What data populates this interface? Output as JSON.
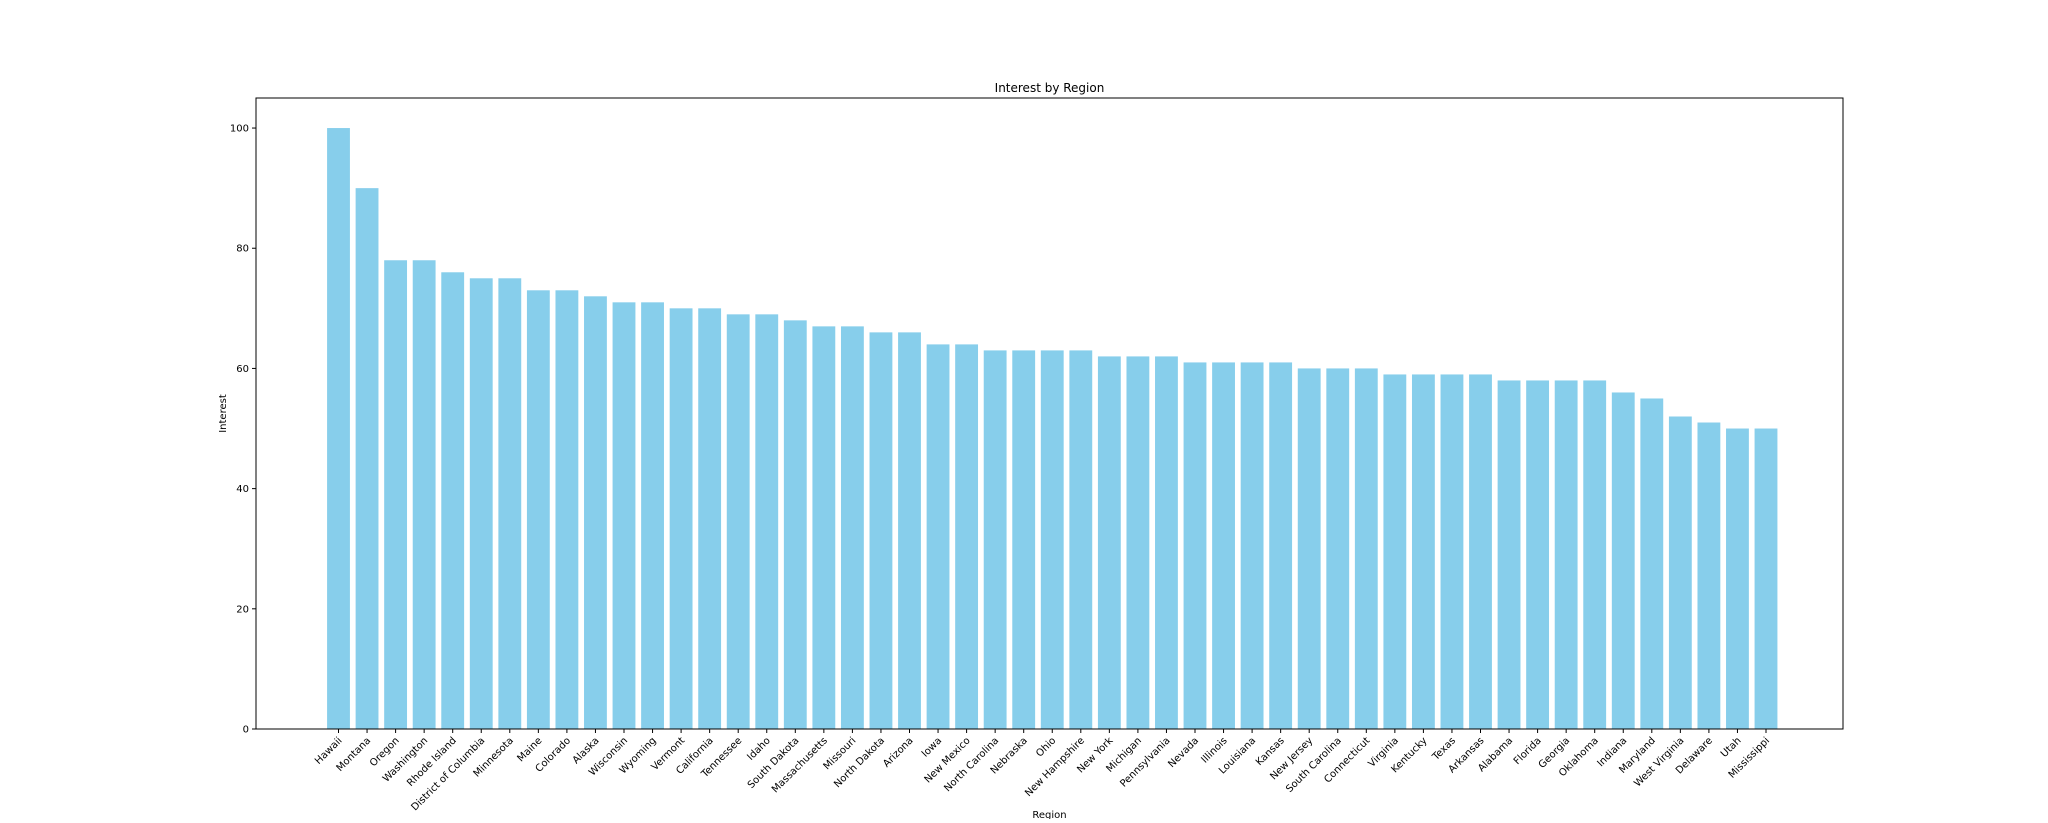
{
  "chart_data": {
    "type": "bar",
    "title": "Interest by Region",
    "xlabel": "Region",
    "ylabel": "Interest",
    "ylim": [
      0,
      105
    ],
    "yticks": [
      0,
      20,
      40,
      60,
      80,
      100
    ],
    "grid": false,
    "bar_color": "#87CEEB",
    "categories": [
      "Hawaii",
      "Montana",
      "Oregon",
      "Washington",
      "Rhode Island",
      "District of Columbia",
      "Minnesota",
      "Maine",
      "Colorado",
      "Alaska",
      "Wisconsin",
      "Wyoming",
      "Vermont",
      "California",
      "Tennessee",
      "Idaho",
      "South Dakota",
      "Massachusetts",
      "Missouri",
      "North Dakota",
      "Arizona",
      "Iowa",
      "New Mexico",
      "North Carolina",
      "Nebraska",
      "Ohio",
      "New Hampshire",
      "New York",
      "Michigan",
      "Pennsylvania",
      "Nevada",
      "Illinois",
      "Louisiana",
      "Kansas",
      "New Jersey",
      "South Carolina",
      "Connecticut",
      "Virginia",
      "Kentucky",
      "Texas",
      "Arkansas",
      "Alabama",
      "Florida",
      "Georgia",
      "Oklahoma",
      "Indiana",
      "Maryland",
      "West Virginia",
      "Delaware",
      "Utah",
      "Mississippi"
    ],
    "values": [
      100,
      90,
      78,
      78,
      76,
      75,
      75,
      73,
      73,
      72,
      71,
      71,
      70,
      70,
      69,
      69,
      68,
      67,
      67,
      66,
      66,
      64,
      64,
      63,
      63,
      63,
      63,
      62,
      62,
      62,
      61,
      61,
      61,
      61,
      60,
      60,
      60,
      59,
      59,
      59,
      59,
      58,
      58,
      58,
      58,
      56,
      55,
      52,
      51,
      50,
      50
    ]
  }
}
